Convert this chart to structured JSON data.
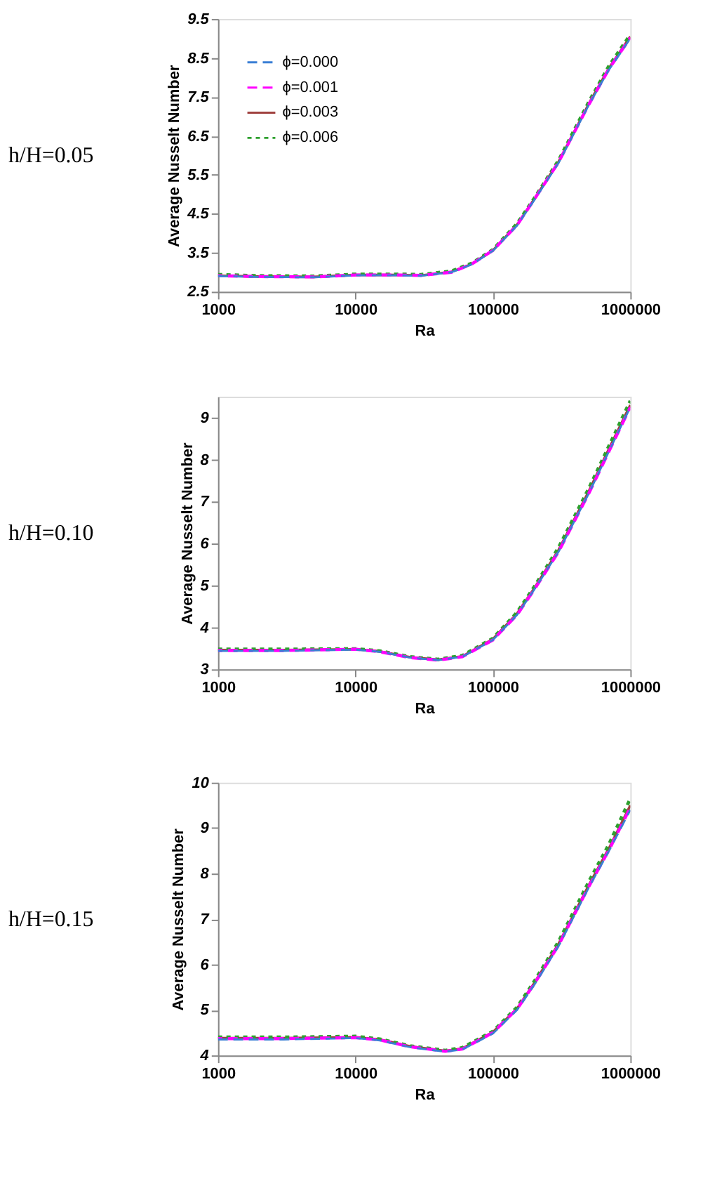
{
  "chart_data": [
    {
      "type": "line",
      "annotations": [
        "h/H=0.05"
      ],
      "xlabel": "Ra",
      "ylabel": "Average Nusselt Number",
      "log": "x",
      "grid": false,
      "legend": "top left",
      "xlim": [
        1000,
        1000000
      ],
      "xticks": [
        1000,
        10000,
        100000,
        1000000
      ],
      "ylim": [
        2.5,
        9.5
      ],
      "yticks": [
        2.5,
        3.5,
        4.5,
        5.5,
        6.5,
        7.5,
        8.5,
        9.5
      ],
      "x": [
        1000,
        2000,
        5000,
        10000,
        20000,
        30000,
        50000,
        70000,
        100000,
        150000,
        200000,
        300000,
        500000,
        700000,
        1000000
      ],
      "series": [
        {
          "name": "ϕ=0.000",
          "color": "#3a7fd5",
          "line_style": "dashed",
          "values": [
            2.9,
            2.88,
            2.87,
            2.92,
            2.92,
            2.91,
            3.0,
            3.2,
            3.55,
            4.2,
            4.85,
            5.8,
            7.3,
            8.2,
            9.0
          ]
        },
        {
          "name": "ϕ=0.001",
          "color": "#ff00ff",
          "line_style": "dashed",
          "values": [
            2.91,
            2.89,
            2.88,
            2.93,
            2.93,
            2.92,
            3.0,
            3.21,
            3.56,
            4.21,
            4.87,
            5.82,
            7.31,
            8.22,
            9.02
          ]
        },
        {
          "name": "ϕ=0.003",
          "color": "#a0413f",
          "line_style": "solid",
          "values": [
            2.91,
            2.89,
            2.88,
            2.93,
            2.93,
            2.92,
            3.01,
            3.21,
            3.56,
            4.22,
            4.88,
            5.83,
            7.33,
            8.24,
            9.05
          ]
        },
        {
          "name": "ϕ=0.006",
          "color": "#2ea02e",
          "line_style": "dotted",
          "values": [
            2.94,
            2.91,
            2.9,
            2.95,
            2.95,
            2.94,
            3.03,
            3.23,
            3.58,
            4.25,
            4.9,
            5.87,
            7.38,
            8.3,
            9.1
          ]
        }
      ]
    },
    {
      "type": "line",
      "annotations": [
        "h/H=0.10"
      ],
      "xlabel": "Ra",
      "ylabel": "Average Nusselt Number",
      "log": "x",
      "grid": false,
      "legend": "top left",
      "xlim": [
        1000,
        1000000
      ],
      "xticks": [
        1000,
        10000,
        100000,
        1000000
      ],
      "ylim": [
        3,
        9.5
      ],
      "yticks": [
        3,
        4,
        5,
        6,
        7,
        8,
        9
      ],
      "x": [
        1000,
        3000,
        10000,
        15000,
        25000,
        40000,
        60000,
        100000,
        150000,
        200000,
        300000,
        500000,
        700000,
        1000000
      ],
      "series": [
        {
          "name": "ϕ=0.000",
          "color": "#3a7fd5",
          "line_style": "dashed",
          "values": [
            3.44,
            3.44,
            3.47,
            3.42,
            3.28,
            3.22,
            3.3,
            3.7,
            4.3,
            4.9,
            5.8,
            7.2,
            8.2,
            9.25
          ]
        },
        {
          "name": "ϕ=0.001",
          "color": "#ff00ff",
          "line_style": "dashed",
          "values": [
            3.45,
            3.45,
            3.48,
            3.42,
            3.28,
            3.22,
            3.3,
            3.7,
            4.3,
            4.9,
            5.8,
            7.2,
            8.2,
            9.25
          ]
        },
        {
          "name": "ϕ=0.003",
          "color": "#a0413f",
          "line_style": "solid",
          "values": [
            3.46,
            3.46,
            3.48,
            3.43,
            3.29,
            3.23,
            3.31,
            3.72,
            4.33,
            4.93,
            5.84,
            7.25,
            8.26,
            9.3
          ]
        },
        {
          "name": "ϕ=0.006",
          "color": "#2ea02e",
          "line_style": "dotted",
          "values": [
            3.48,
            3.48,
            3.49,
            3.44,
            3.3,
            3.24,
            3.33,
            3.74,
            4.36,
            4.97,
            5.9,
            7.32,
            8.33,
            9.4
          ]
        }
      ]
    },
    {
      "type": "line",
      "annotations": [
        "h/H=0.15"
      ],
      "xlabel": "Ra",
      "ylabel": "Average Nusselt Number",
      "log": "x",
      "grid": false,
      "legend": "top left",
      "xlim": [
        1000,
        1000000
      ],
      "xticks": [
        1000,
        10000,
        100000,
        1000000
      ],
      "ylim": [
        4,
        10
      ],
      "yticks": [
        4,
        5,
        6,
        7,
        8,
        9,
        10
      ],
      "x": [
        1000,
        3000,
        10000,
        15000,
        25000,
        45000,
        60000,
        100000,
        150000,
        200000,
        300000,
        500000,
        700000,
        1000000
      ],
      "series": [
        {
          "name": "ϕ=0.000",
          "color": "#3a7fd5",
          "line_style": "dashed",
          "values": [
            4.35,
            4.35,
            4.38,
            4.33,
            4.18,
            4.08,
            4.13,
            4.48,
            5.0,
            5.55,
            6.4,
            7.7,
            8.5,
            9.4
          ]
        },
        {
          "name": "ϕ=0.001",
          "color": "#ff00ff",
          "line_style": "dashed",
          "values": [
            4.37,
            4.37,
            4.39,
            4.34,
            4.19,
            4.09,
            4.14,
            4.5,
            5.02,
            5.57,
            6.42,
            7.72,
            8.52,
            9.45
          ]
        },
        {
          "name": "ϕ=0.003",
          "color": "#a0413f",
          "line_style": "solid",
          "values": [
            4.38,
            4.38,
            4.4,
            4.35,
            4.2,
            4.1,
            4.15,
            4.51,
            5.03,
            5.59,
            6.45,
            7.75,
            8.56,
            9.5
          ]
        },
        {
          "name": "ϕ=0.006",
          "color": "#2ea02e",
          "line_style": "dotted",
          "values": [
            4.4,
            4.4,
            4.42,
            4.36,
            4.21,
            4.11,
            4.17,
            4.53,
            5.06,
            5.63,
            6.5,
            7.83,
            8.65,
            9.65
          ]
        }
      ]
    }
  ]
}
